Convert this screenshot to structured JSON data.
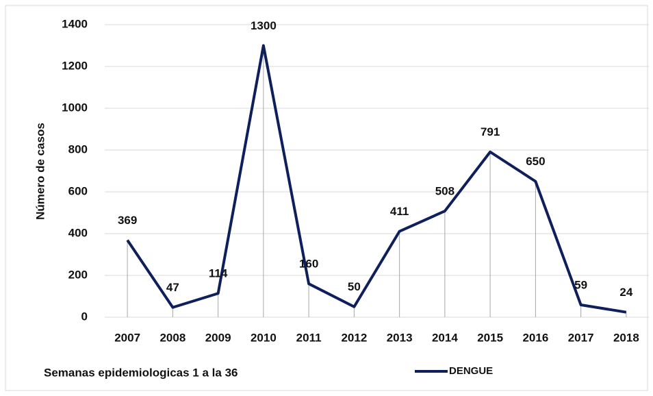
{
  "chart_data": {
    "type": "line",
    "y_label": "Número de casos",
    "x_label": "Semanas epidemiologicas 1 a la 36",
    "categories": [
      "2007",
      "2008",
      "2009",
      "2010",
      "2011",
      "2012",
      "2013",
      "2014",
      "2015",
      "2016",
      "2017",
      "2018"
    ],
    "series": [
      {
        "name": "DENGUE",
        "color": "#0e1f5b",
        "values": [
          369,
          47,
          114,
          1300,
          160,
          50,
          411,
          508,
          791,
          650,
          59,
          24
        ]
      }
    ],
    "ylim": [
      0,
      1400
    ],
    "yticks": [
      0,
      200,
      400,
      600,
      800,
      1000,
      1200,
      1400
    ],
    "grid": true,
    "drop_lines": true,
    "legend": "bottom"
  }
}
